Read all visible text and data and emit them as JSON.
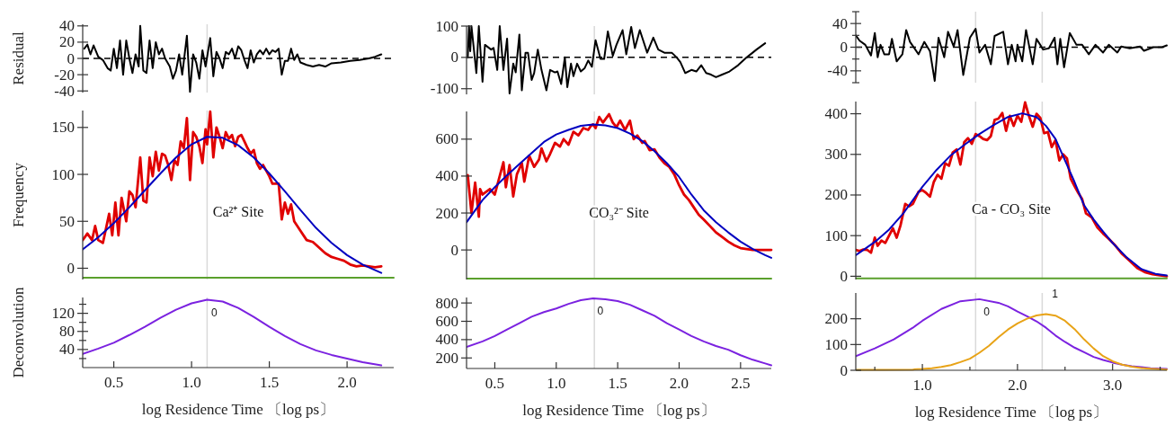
{
  "chart_data": [
    {
      "type": "line",
      "ylabel": "Residual",
      "xlim": [
        0.3,
        2.3
      ],
      "ylim": [
        -42,
        42
      ],
      "yticks": [
        -40,
        -20,
        0,
        20,
        40
      ],
      "tick_labels": "y",
      "ref_lines": [
        {
          "axis": "y",
          "value": 0,
          "color": "#000000",
          "line_style": "dashed"
        },
        {
          "axis": "x",
          "value": 1.1,
          "color": "#d9d9d9"
        }
      ],
      "series": [
        {
          "color": "#000000",
          "x": [
            0.31,
            0.33,
            0.35,
            0.37,
            0.4,
            0.43,
            0.46,
            0.48,
            0.5,
            0.52,
            0.54,
            0.56,
            0.58,
            0.6,
            0.62,
            0.64,
            0.66,
            0.67,
            0.69,
            0.71,
            0.73,
            0.75,
            0.77,
            0.79,
            0.81,
            0.83,
            0.86,
            0.88,
            0.9,
            0.92,
            0.94,
            0.97,
            0.99,
            1.01,
            1.03,
            1.05,
            1.07,
            1.09,
            1.12,
            1.14,
            1.16,
            1.18,
            1.2,
            1.22,
            1.24,
            1.26,
            1.28,
            1.3,
            1.32,
            1.34,
            1.36,
            1.38,
            1.4,
            1.42,
            1.44,
            1.46,
            1.48,
            1.5,
            1.52,
            1.54,
            1.56,
            1.58,
            1.6,
            1.62,
            1.64,
            1.66,
            1.68,
            1.7,
            1.74,
            1.78,
            1.82,
            1.86,
            1.9,
            1.96,
            2.02,
            2.08,
            2.14,
            2.18,
            2.22
          ],
          "values": [
            12,
            17,
            5,
            16,
            2,
            -2,
            -12,
            -15,
            12,
            -12,
            22,
            -20,
            22,
            0,
            -18,
            5,
            -10,
            40,
            -15,
            -18,
            22,
            -12,
            20,
            5,
            12,
            0,
            -10,
            -25,
            -15,
            5,
            -20,
            28,
            -41,
            5,
            -5,
            -25,
            10,
            -10,
            25,
            -22,
            8,
            0,
            -12,
            8,
            5,
            12,
            0,
            15,
            10,
            -2,
            -12,
            10,
            -5,
            5,
            10,
            5,
            12,
            5,
            10,
            8,
            12,
            -20,
            -3,
            -3,
            12,
            -2,
            5,
            -5,
            -8,
            -10,
            -8,
            -10,
            -6,
            -5,
            -3,
            -2,
            0,
            2,
            5
          ]
        }
      ]
    },
    {
      "type": "line",
      "xlim": [
        0.27,
        2.75
      ],
      "ylim": [
        -118,
        100
      ],
      "yticks": [
        -100,
        0,
        100
      ],
      "tick_labels": "y",
      "ref_lines": [
        {
          "axis": "y",
          "value": 0,
          "color": "#000000",
          "line_style": "dashed"
        },
        {
          "axis": "x",
          "value": 1.31,
          "color": "#d9d9d9"
        }
      ],
      "series": [
        {
          "color": "#000000",
          "x": [
            0.28,
            0.29,
            0.3,
            0.31,
            0.35,
            0.37,
            0.4,
            0.42,
            0.47,
            0.49,
            0.52,
            0.54,
            0.57,
            0.6,
            0.62,
            0.65,
            0.67,
            0.7,
            0.72,
            0.75,
            0.77,
            0.8,
            0.82,
            0.85,
            0.88,
            0.92,
            0.95,
            0.99,
            1.01,
            1.04,
            1.07,
            1.09,
            1.12,
            1.14,
            1.17,
            1.2,
            1.23,
            1.26,
            1.29,
            1.32,
            1.36,
            1.39,
            1.42,
            1.46,
            1.49,
            1.54,
            1.57,
            1.61,
            1.64,
            1.68,
            1.74,
            1.79,
            1.83,
            1.88,
            1.94,
            1.98,
            2.01,
            2.05,
            2.1,
            2.14,
            2.18,
            2.22,
            2.26,
            2.3,
            2.35,
            2.41,
            2.48,
            2.55,
            2.63,
            2.7
          ],
          "values": [
            0,
            100,
            20,
            100,
            -50,
            100,
            -78,
            40,
            25,
            30,
            -40,
            100,
            -40,
            60,
            -115,
            -20,
            -48,
            73,
            -105,
            15,
            15,
            -72,
            -50,
            25,
            -40,
            -105,
            -40,
            -48,
            -45,
            -85,
            0,
            -95,
            -20,
            -60,
            -20,
            -45,
            -35,
            -10,
            -30,
            55,
            -5,
            -5,
            83,
            5,
            40,
            87,
            10,
            97,
            30,
            87,
            15,
            63,
            25,
            15,
            15,
            0,
            -15,
            -50,
            -40,
            -45,
            -25,
            -50,
            -55,
            -63,
            -55,
            -45,
            -25,
            0,
            25,
            45
          ]
        }
      ]
    },
    {
      "type": "line",
      "xlim": [
        0.3,
        3.57
      ],
      "ylim": [
        -60,
        60
      ],
      "yticks": [
        {
          "value": -60,
          "label": null
        },
        -40,
        {
          "value": -20,
          "label": null
        },
        0,
        {
          "value": 20,
          "label": null
        },
        40,
        {
          "value": 60,
          "label": null
        }
      ],
      "tick_labels": "y",
      "ref_lines": [
        {
          "axis": "y",
          "value": 0,
          "color": "#000000",
          "line_style": "dashed"
        },
        {
          "axis": "x",
          "value": 1.56,
          "color": "#d9d9d9"
        },
        {
          "axis": "x",
          "value": 2.26,
          "color": "#d9d9d9"
        }
      ],
      "series": [
        {
          "color": "#000000",
          "x": [
            0.3,
            0.34,
            0.4,
            0.46,
            0.5,
            0.53,
            0.56,
            0.6,
            0.65,
            0.68,
            0.73,
            0.79,
            0.83,
            0.87,
            0.96,
            1.02,
            1.08,
            1.13,
            1.17,
            1.23,
            1.27,
            1.33,
            1.37,
            1.43,
            1.5,
            1.56,
            1.6,
            1.66,
            1.72,
            1.76,
            1.85,
            1.9,
            1.94,
            1.98,
            2.0,
            2.05,
            2.09,
            2.16,
            2.2,
            2.27,
            2.33,
            2.39,
            2.42,
            2.45,
            2.49,
            2.55,
            2.62,
            2.68,
            2.75,
            2.82,
            2.9,
            2.96,
            3.05,
            3.09,
            3.18,
            3.29,
            3.33,
            3.43,
            3.52,
            3.57
          ],
          "values": [
            20,
            11,
            4,
            -14,
            24,
            -17,
            4,
            -12,
            -12,
            14,
            -24,
            -12,
            29,
            9,
            -12,
            9,
            -7,
            -57,
            16,
            -17,
            26,
            1,
            29,
            -47,
            16,
            31,
            -9,
            4,
            -29,
            19,
            26,
            -29,
            4,
            -24,
            4,
            -24,
            29,
            -29,
            14,
            -4,
            -2,
            16,
            -29,
            14,
            -34,
            24,
            4,
            4,
            -12,
            4,
            -9,
            4,
            -9,
            1,
            -2,
            1,
            -6,
            0,
            0,
            3
          ]
        }
      ]
    },
    {
      "type": "line",
      "ylabel": "Frequency",
      "xlim": [
        0.3,
        2.3
      ],
      "ylim": [
        -12,
        168
      ],
      "yticks": [
        0,
        50,
        100,
        150
      ],
      "tick_labels": "y",
      "annotations": [
        "Ca²⁺ Site"
      ],
      "ref_lines": [
        {
          "axis": "x",
          "value": 1.1,
          "color": "#d9d9d9"
        }
      ],
      "series": [
        {
          "color": "#e00000",
          "x": [
            0.3,
            0.33,
            0.36,
            0.38,
            0.4,
            0.43,
            0.47,
            0.49,
            0.51,
            0.53,
            0.55,
            0.58,
            0.6,
            0.62,
            0.64,
            0.67,
            0.69,
            0.71,
            0.73,
            0.75,
            0.77,
            0.79,
            0.81,
            0.83,
            0.85,
            0.87,
            0.89,
            0.91,
            0.93,
            0.95,
            0.97,
            0.99,
            1.01,
            1.03,
            1.05,
            1.07,
            1.09,
            1.1,
            1.12,
            1.14,
            1.16,
            1.18,
            1.2,
            1.22,
            1.24,
            1.26,
            1.28,
            1.3,
            1.32,
            1.34,
            1.36,
            1.38,
            1.4,
            1.42,
            1.44,
            1.46,
            1.48,
            1.5,
            1.52,
            1.54,
            1.56,
            1.58,
            1.6,
            1.62,
            1.64,
            1.66,
            1.7,
            1.74,
            1.78,
            1.82,
            1.86,
            1.9,
            1.94,
            1.98,
            2.02,
            2.06,
            2.1,
            2.14,
            2.18,
            2.22
          ],
          "values": [
            30,
            37,
            30,
            45,
            30,
            27,
            58,
            35,
            70,
            35,
            75,
            50,
            82,
            78,
            65,
            118,
            72,
            70,
            118,
            98,
            124,
            104,
            122,
            120,
            110,
            94,
            115,
            110,
            135,
            128,
            160,
            94,
            145,
            140,
            130,
            112,
            148,
            132,
            167,
            118,
            150,
            140,
            128,
            145,
            138,
            142,
            130,
            140,
            142,
            135,
            128,
            122,
            126,
            112,
            106,
            110,
            104,
            98,
            90,
            90,
            90,
            52,
            70,
            58,
            68,
            50,
            40,
            30,
            28,
            22,
            16,
            12,
            10,
            8,
            4,
            2,
            3,
            2,
            1,
            2
          ]
        },
        {
          "color": "#0000c0",
          "x": [
            0.3,
            0.4,
            0.5,
            0.6,
            0.7,
            0.8,
            0.9,
            1.0,
            1.1,
            1.2,
            1.3,
            1.4,
            1.5,
            1.6,
            1.7,
            1.8,
            1.9,
            2.0,
            2.1,
            2.22
          ],
          "values": [
            20,
            33,
            48,
            65,
            83,
            101,
            118,
            132,
            140,
            139,
            131,
            118,
            101,
            82,
            62,
            43,
            27,
            14,
            4,
            -5
          ]
        },
        {
          "color": "#5aa02c",
          "x": [
            0.3,
            2.3
          ],
          "values": [
            -10,
            -10
          ]
        }
      ]
    },
    {
      "type": "line",
      "xlim": [
        0.27,
        2.75
      ],
      "ylim": [
        -160,
        750
      ],
      "yticks": [
        0,
        200,
        400,
        600
      ],
      "tick_labels": "y",
      "annotations": [
        "CO₃²⁻ Site"
      ],
      "ref_lines": [
        {
          "axis": "x",
          "value": 1.31,
          "color": "#d9d9d9"
        }
      ],
      "series": [
        {
          "color": "#e00000",
          "x": [
            0.28,
            0.31,
            0.34,
            0.37,
            0.38,
            0.4,
            0.46,
            0.5,
            0.57,
            0.59,
            0.62,
            0.65,
            0.68,
            0.72,
            0.74,
            0.78,
            0.82,
            0.86,
            0.88,
            0.92,
            0.95,
            0.99,
            1.03,
            1.06,
            1.1,
            1.14,
            1.18,
            1.22,
            1.26,
            1.28,
            1.3,
            1.32,
            1.35,
            1.38,
            1.43,
            1.46,
            1.49,
            1.52,
            1.56,
            1.6,
            1.63,
            1.66,
            1.7,
            1.72,
            1.76,
            1.8,
            1.84,
            1.88,
            1.92,
            1.96,
            2.0,
            2.04,
            2.08,
            2.12,
            2.16,
            2.2,
            2.25,
            2.3,
            2.35,
            2.4,
            2.45,
            2.5,
            2.55,
            2.6,
            2.65,
            2.7,
            2.75
          ],
          "values": [
            405,
            200,
            365,
            180,
            330,
            300,
            330,
            300,
            475,
            340,
            460,
            290,
            410,
            470,
            370,
            510,
            450,
            490,
            550,
            480,
            520,
            580,
            560,
            600,
            570,
            640,
            620,
            660,
            650,
            670,
            680,
            660,
            720,
            690,
            735,
            690,
            665,
            700,
            650,
            700,
            600,
            620,
            580,
            590,
            540,
            545,
            500,
            470,
            450,
            410,
            350,
            300,
            270,
            230,
            190,
            165,
            130,
            95,
            70,
            45,
            25,
            10,
            5,
            0,
            0,
            0,
            0
          ]
        },
        {
          "color": "#0000c0",
          "x": [
            0.27,
            0.4,
            0.5,
            0.6,
            0.7,
            0.8,
            0.9,
            1.0,
            1.1,
            1.2,
            1.3,
            1.4,
            1.5,
            1.6,
            1.7,
            1.8,
            1.9,
            2.0,
            2.1,
            2.2,
            2.3,
            2.4,
            2.5,
            2.6,
            2.7,
            2.75
          ],
          "values": [
            150,
            270,
            340,
            405,
            465,
            525,
            585,
            625,
            650,
            672,
            680,
            675,
            660,
            630,
            590,
            535,
            470,
            395,
            300,
            215,
            150,
            95,
            45,
            5,
            -28,
            -43
          ]
        },
        {
          "color": "#5aa02c",
          "x": [
            0.27,
            2.75
          ],
          "values": [
            -155,
            -155
          ]
        }
      ]
    },
    {
      "type": "line",
      "xlim": [
        0.3,
        3.57
      ],
      "ylim": [
        -8,
        430
      ],
      "yticks": [
        0,
        100,
        200,
        300,
        400
      ],
      "tick_labels": "y",
      "annotations": [
        "Ca - CO₃ Site"
      ],
      "ref_lines": [
        {
          "axis": "x",
          "value": 1.56,
          "color": "#d9d9d9"
        },
        {
          "axis": "x",
          "value": 2.26,
          "color": "#d9d9d9"
        }
      ],
      "series": [
        {
          "color": "#e00000",
          "x": [
            0.3,
            0.34,
            0.38,
            0.42,
            0.46,
            0.5,
            0.53,
            0.57,
            0.61,
            0.65,
            0.69,
            0.73,
            0.77,
            0.82,
            0.86,
            0.9,
            0.96,
            1.0,
            1.04,
            1.08,
            1.12,
            1.16,
            1.2,
            1.24,
            1.28,
            1.32,
            1.36,
            1.4,
            1.44,
            1.48,
            1.52,
            1.56,
            1.6,
            1.64,
            1.68,
            1.72,
            1.76,
            1.8,
            1.84,
            1.88,
            1.92,
            1.96,
            2.0,
            2.04,
            2.08,
            2.12,
            2.16,
            2.2,
            2.24,
            2.28,
            2.32,
            2.36,
            2.4,
            2.44,
            2.48,
            2.52,
            2.56,
            2.6,
            2.64,
            2.68,
            2.72,
            2.78,
            2.84,
            2.9,
            2.96,
            3.02,
            3.1,
            3.18,
            3.26,
            3.34,
            3.42,
            3.5,
            3.57
          ],
          "values": [
            65,
            62,
            66,
            65,
            58,
            95,
            75,
            88,
            82,
            100,
            118,
            95,
            125,
            178,
            172,
            178,
            208,
            212,
            205,
            196,
            232,
            250,
            240,
            278,
            272,
            305,
            312,
            275,
            330,
            340,
            326,
            350,
            345,
            338,
            335,
            345,
            385,
            388,
            402,
            358,
            395,
            370,
            395,
            380,
            428,
            395,
            368,
            400,
            390,
            352,
            355,
            318,
            335,
            285,
            300,
            290,
            240,
            222,
            205,
            190,
            155,
            145,
            120,
            105,
            92,
            78,
            55,
            38,
            20,
            10,
            5,
            2,
            0
          ]
        },
        {
          "color": "#0000c0",
          "x": [
            0.3,
            0.4,
            0.52,
            0.65,
            0.8,
            1.0,
            1.15,
            1.3,
            1.45,
            1.6,
            1.75,
            1.9,
            2.05,
            2.2,
            2.3,
            2.4,
            2.5,
            2.6,
            2.7,
            2.8,
            2.9,
            3.0,
            3.15,
            3.3,
            3.45,
            3.57
          ],
          "values": [
            52,
            68,
            88,
            115,
            155,
            220,
            262,
            298,
            325,
            350,
            372,
            392,
            401,
            392,
            370,
            338,
            285,
            232,
            175,
            140,
            110,
            82,
            46,
            18,
            6,
            2
          ]
        },
        {
          "color": "#5aa02c",
          "x": [
            0.3,
            3.57
          ],
          "values": [
            -5,
            -5
          ]
        }
      ]
    },
    {
      "type": "line",
      "ylabel": "Deconvolution",
      "xlabel": "log Residence Time 〔log ps〕",
      "xlim": [
        0.3,
        2.3
      ],
      "ylim": [
        0,
        155
      ],
      "xticks": [
        0.5,
        {
          "value": 1,
          "label": "1.0"
        },
        1.5,
        {
          "value": 2,
          "label": "2.0"
        }
      ],
      "yticks": [
        {
          "value": 20,
          "label": null
        },
        40,
        {
          "value": 60,
          "label": null
        },
        80,
        {
          "value": 100,
          "label": null
        },
        120,
        {
          "value": 140,
          "label": null
        }
      ],
      "ref_lines": [
        {
          "axis": "x",
          "value": 1.1,
          "color": "#d9d9d9"
        }
      ],
      "series": [
        {
          "name": "0",
          "color": "#7b22e0",
          "x": [
            0.3,
            0.4,
            0.5,
            0.6,
            0.7,
            0.8,
            0.9,
            1.0,
            1.1,
            1.2,
            1.3,
            1.4,
            1.5,
            1.6,
            1.7,
            1.8,
            1.9,
            2.0,
            2.1,
            2.22
          ],
          "values": [
            30,
            42,
            55,
            72,
            90,
            110,
            128,
            142,
            150,
            146,
            132,
            112,
            90,
            70,
            52,
            38,
            28,
            20,
            12,
            5
          ]
        }
      ]
    },
    {
      "type": "line",
      "xlabel": "log Residence Time 〔log ps〕",
      "xlim": [
        0.27,
        2.75
      ],
      "ylim": [
        85,
        860
      ],
      "xticks": [
        0.5,
        {
          "value": 1,
          "label": "1.0"
        },
        1.5,
        {
          "value": 2,
          "label": "2.0"
        },
        2.5
      ],
      "yticks": [
        200,
        400,
        600,
        800
      ],
      "ref_lines": [
        {
          "axis": "x",
          "value": 1.31,
          "color": "#d9d9d9"
        }
      ],
      "series": [
        {
          "name": "0",
          "color": "#7b22e0",
          "x": [
            0.27,
            0.4,
            0.5,
            0.6,
            0.7,
            0.8,
            0.9,
            1.0,
            1.1,
            1.2,
            1.3,
            1.4,
            1.5,
            1.6,
            1.7,
            1.8,
            1.9,
            2.0,
            2.1,
            2.2,
            2.3,
            2.4,
            2.5,
            2.6,
            2.7,
            2.75
          ],
          "values": [
            320,
            380,
            440,
            510,
            580,
            650,
            700,
            740,
            790,
            830,
            850,
            840,
            820,
            780,
            720,
            660,
            580,
            510,
            440,
            380,
            330,
            290,
            230,
            180,
            140,
            120
          ]
        }
      ]
    },
    {
      "type": "line",
      "xlabel": "log Residence Time 〔log ps〕",
      "xlim": [
        0.3,
        3.57
      ],
      "ylim": [
        0,
        300
      ],
      "xticks": [
        {
          "value": 0.5,
          "label": null
        },
        {
          "value": 1,
          "label": "1.0"
        },
        {
          "value": 1.5,
          "label": null
        },
        {
          "value": 2,
          "label": "2.0"
        },
        {
          "value": 2.5,
          "label": null
        },
        {
          "value": 3,
          "label": "3.0"
        },
        {
          "value": 3.5,
          "label": null
        }
      ],
      "yticks": [
        0,
        100,
        200
      ],
      "ref_lines": [
        {
          "axis": "x",
          "value": 1.56,
          "color": "#d9d9d9"
        },
        {
          "axis": "x",
          "value": 2.26,
          "color": "#d9d9d9"
        }
      ],
      "series": [
        {
          "name": "0",
          "color": "#7b22e0",
          "x": [
            0.3,
            0.5,
            0.7,
            0.9,
            1.0,
            1.2,
            1.4,
            1.6,
            1.8,
            1.9,
            2.0,
            2.1,
            2.2,
            2.3,
            2.4,
            2.5,
            2.6,
            2.7,
            2.8,
            2.9,
            3.0,
            3.1,
            3.2,
            3.3,
            3.4,
            3.57
          ],
          "values": [
            55,
            85,
            120,
            165,
            192,
            238,
            268,
            276,
            262,
            248,
            228,
            210,
            190,
            165,
            135,
            110,
            88,
            70,
            52,
            40,
            30,
            22,
            16,
            12,
            8,
            5
          ]
        },
        {
          "name": "1",
          "color": "#e8a317",
          "x": [
            0.3,
            0.6,
            0.9,
            1.0,
            1.1,
            1.2,
            1.3,
            1.4,
            1.5,
            1.6,
            1.7,
            1.8,
            1.9,
            2.0,
            2.1,
            2.2,
            2.3,
            2.4,
            2.5,
            2.6,
            2.7,
            2.8,
            2.9,
            3.0,
            3.1,
            3.2,
            3.3,
            3.4,
            3.57
          ],
          "values": [
            2,
            2,
            3,
            5,
            8,
            13,
            20,
            32,
            45,
            68,
            95,
            128,
            158,
            182,
            200,
            213,
            218,
            212,
            192,
            160,
            120,
            85,
            55,
            35,
            22,
            14,
            9,
            6,
            3
          ]
        }
      ]
    }
  ]
}
